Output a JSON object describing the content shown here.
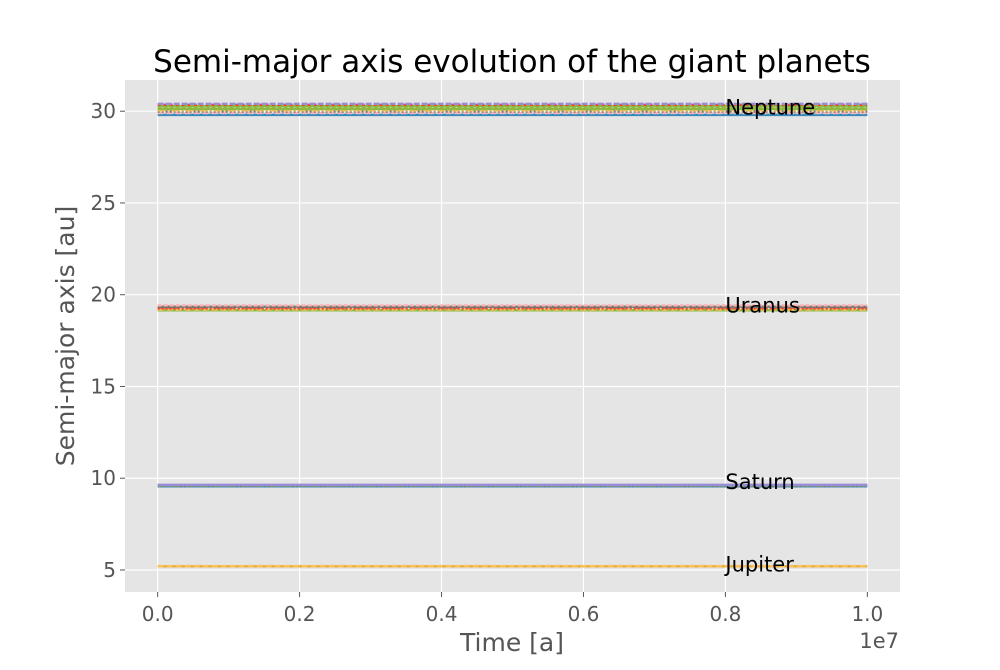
{
  "chart_data": {
    "type": "line",
    "title": "Semi-major axis evolution of the giant planets",
    "xlabel": "Time [a]",
    "ylabel": "Semi-major axis [au]",
    "x_offset_label": "1e7",
    "xlim": [
      -0.046,
      1.046
    ],
    "ylim": [
      3.8,
      31.7
    ],
    "x_ticks": [
      0.0,
      0.2,
      0.4,
      0.6,
      0.8,
      1.0
    ],
    "x_tick_labels": [
      "0.0",
      "0.2",
      "0.4",
      "0.6",
      "0.8",
      "1.0"
    ],
    "y_ticks": [
      5,
      10,
      15,
      20,
      25,
      30
    ],
    "y_tick_labels": [
      "5",
      "10",
      "15",
      "20",
      "25",
      "30"
    ],
    "grid": true,
    "x": [
      0.0,
      1.0
    ],
    "series": [
      {
        "name": "Jupiter",
        "color": "#E5AE38",
        "band": [
          {
            "y": 5.2,
            "color": "#E5AE38"
          },
          {
            "y": 5.21,
            "color": "#FBC15E"
          }
        ]
      },
      {
        "name": "Saturn",
        "color": "#8EBA42",
        "band": [
          {
            "y": 9.56,
            "color": "#348ABD"
          },
          {
            "y": 9.58,
            "color": "#777777"
          },
          {
            "y": 9.6,
            "color": "#988ED5"
          },
          {
            "y": 9.62,
            "color": "#8EBA42"
          },
          {
            "y": 9.64,
            "color": "#988ED5"
          }
        ]
      },
      {
        "name": "Uranus",
        "color": "#E24A33",
        "band": [
          {
            "y": 19.15,
            "color": "#8EBA42"
          },
          {
            "y": 19.2,
            "color": "#FBC15E"
          },
          {
            "y": 19.25,
            "color": "#E24A33"
          },
          {
            "y": 19.3,
            "color": "#E24A33"
          },
          {
            "y": 19.35,
            "color": "#777777"
          },
          {
            "y": 19.42,
            "color": "#FFB5B8"
          }
        ]
      },
      {
        "name": "Neptune",
        "color": "#8EBA42",
        "band": [
          {
            "y": 29.8,
            "color": "#348ABD"
          },
          {
            "y": 29.9,
            "color": "#FFB5B8"
          },
          {
            "y": 29.98,
            "color": "#777777"
          },
          {
            "y": 30.05,
            "color": "#FBC15E"
          },
          {
            "y": 30.12,
            "color": "#8EBA42"
          },
          {
            "y": 30.2,
            "color": "#8EBA42"
          },
          {
            "y": 30.28,
            "color": "#8EBA42"
          },
          {
            "y": 30.35,
            "color": "#E24A33"
          },
          {
            "y": 30.4,
            "color": "#988ED5"
          }
        ]
      }
    ],
    "annotations": [
      {
        "text": "Neptune",
        "x": 0.8,
        "y": 30.2
      },
      {
        "text": "Uranus",
        "x": 0.8,
        "y": 19.4
      },
      {
        "text": "Saturn",
        "x": 0.8,
        "y": 9.8
      },
      {
        "text": "Jupiter",
        "x": 0.8,
        "y": 5.3
      }
    ]
  }
}
